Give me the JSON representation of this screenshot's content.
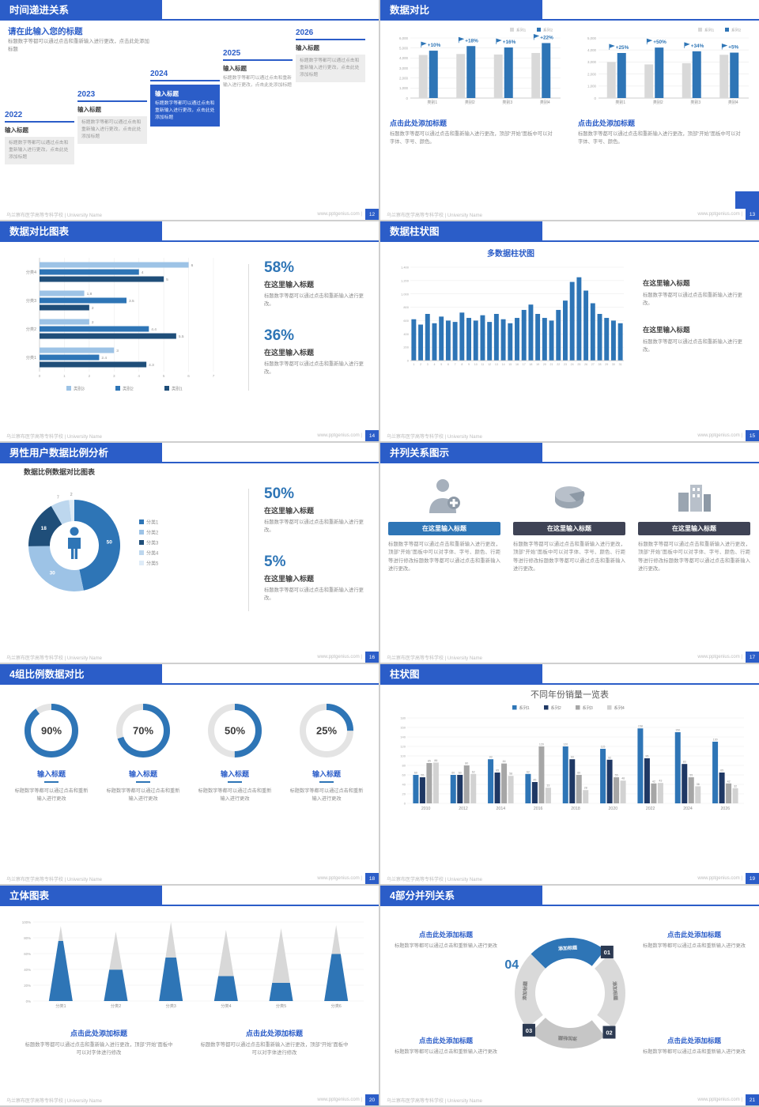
{
  "footer": {
    "left": "乌兰察布医学高等专科学校 | University Name",
    "site": "www.pptgenius.com"
  },
  "slides": {
    "s12": {
      "title": "时间递进关系",
      "page": "12",
      "heading": "请在此输入您的标题",
      "subtext": "标题数字等都可以通过点击和重新输入进行更改，点击此处添加标题",
      "items": [
        {
          "year": "2022",
          "label": "输入标题",
          "body": "标题数字等都可以通过点击和重新输入进行更改，点击此处添加标题"
        },
        {
          "year": "2023",
          "label": "输入标题",
          "body": "标题数字等都可以通过点击和重新输入进行更改，点击此处添加标题"
        },
        {
          "year": "2024",
          "label": "输入标题",
          "body": "标题数字等都可以通过点击和重新输入进行更改，点击此处添加标题"
        },
        {
          "year": "2025",
          "label": "输入标题",
          "body": "标题数字等都可以通过点击和重新输入进行更改，点击此处添加标题"
        },
        {
          "year": "2026",
          "label": "输入标题",
          "body": "标题数字等都可以通过点击和重新输入进行更改，点击此处添加标题"
        }
      ]
    },
    "s13": {
      "title": "数据对比",
      "page": "13",
      "charts": [
        {
          "type": "bar",
          "legend": [
            "系列1",
            "系列2"
          ],
          "categories": [
            "类别1",
            "类别2",
            "类别3",
            "类别4"
          ],
          "series1": [
            4300,
            4400,
            4350,
            4500
          ],
          "series2": [
            4730,
            5190,
            5050,
            5490
          ],
          "pct": [
            "+10%",
            "+18%",
            "+16%",
            "+22%"
          ],
          "ymax": 6000,
          "ysteps": 6,
          "caption": "点击此处添加标题",
          "body": "标题数字等都可以通过点击和重新输入进行更改，顶部“开始”面板中可以对字体、字号、颜色。"
        },
        {
          "type": "bar",
          "legend": [
            "系列1",
            "系列2"
          ],
          "categories": [
            "类别1",
            "类别2",
            "类别3",
            "类别4"
          ],
          "series1": [
            3000,
            2800,
            2900,
            3600
          ],
          "series2": [
            3750,
            4200,
            3890,
            3780
          ],
          "pct": [
            "+25%",
            "+50%",
            "+34%",
            "+5%"
          ],
          "ymax": 5000,
          "ysteps": 5,
          "caption": "点击此处添加标题",
          "body": "标题数字等都可以通过点击和重新输入进行更改，顶部“开始”面板中可以对字体、字号、颜色。"
        }
      ]
    },
    "s14": {
      "title": "数据对比图表",
      "page": "14",
      "chart": {
        "type": "bar",
        "categories": [
          "分类1",
          "分类2",
          "分类3",
          "分类4"
        ],
        "series": [
          {
            "name": "类别1",
            "color": "#1f4e79",
            "values": [
              4.3,
              5.5,
              2,
              5
            ]
          },
          {
            "name": "类别2",
            "color": "#2e75b6",
            "values": [
              2.4,
              4.4,
              3.5,
              4
            ]
          },
          {
            "name": "类别3",
            "color": "#9dc3e6",
            "values": [
              3,
              2,
              1.8,
              6
            ]
          }
        ],
        "xmax": 7
      },
      "stats": [
        {
          "pct": "58%",
          "label": "在这里输入标题",
          "body": "标题数字等都可以通过点击和重新输入进行更改。"
        },
        {
          "pct": "36%",
          "label": "在这里输入标题",
          "body": "标题数字等都可以通过点击和重新输入进行更改。"
        }
      ]
    },
    "s15": {
      "title": "数据柱状图",
      "page": "15",
      "chart_title": "多数据柱状图",
      "chart": {
        "type": "bar",
        "ymax": 1400,
        "ystep": 200,
        "values": [
          620,
          540,
          700,
          560,
          660,
          600,
          580,
          720,
          640,
          600,
          680,
          580,
          700,
          620,
          560,
          640,
          760,
          840,
          700,
          640,
          600,
          760,
          900,
          1180,
          1250,
          1050,
          860,
          700,
          640,
          600,
          560
        ]
      },
      "texts": [
        {
          "label": "在这里输入标题",
          "body": "标题数字等都可以通过点击和重新输入进行更改。"
        },
        {
          "label": "在这里输入标题",
          "body": "标题数字等都可以通过点击和重新输入进行更改。"
        }
      ]
    },
    "s16": {
      "title": "男性用户数据比例分析",
      "page": "16",
      "chart_title": "数据比例数据对比图表",
      "chart": {
        "type": "pie",
        "legend": [
          "分类1",
          "分类2",
          "分类3",
          "分类4",
          "分类5"
        ],
        "values": [
          50,
          30,
          18,
          7,
          2
        ],
        "colors": [
          "#2e75b6",
          "#9dc3e6",
          "#1f4e79",
          "#bdd7ee",
          "#deebf7"
        ]
      },
      "stats": [
        {
          "pct": "50%",
          "label": "在这里输入标题",
          "body": "标题数字等都可以通过点击和重新输入进行更改。"
        },
        {
          "pct": "5%",
          "label": "在这里输入标题",
          "body": "标题数字等都可以通过点击和重新输入进行更改。"
        }
      ]
    },
    "s17": {
      "title": "并列关系图示",
      "page": "17",
      "columns": [
        {
          "icon": "nurse-icon",
          "header": "在这里输入标题",
          "body": "标题数字等都可以通过点击和重新输入进行更改，顶部“开始”面板中可以对字体、字号、颜色、行距等进行修改标题数字等都可以通过点击和重新输入进行更改。"
        },
        {
          "icon": "pie-chart-icon",
          "header": "在这里输入标题",
          "body": "标题数字等都可以通过点击和重新输入进行更改，顶部“开始”面板中可以对字体、字号、颜色、行距等进行修改标题数字等都可以通过点击和重新输入进行更改。"
        },
        {
          "icon": "building-icon",
          "header": "在这里输入标题",
          "body": "标题数字等都可以通过点击和重新输入进行更改，顶部“开始”面板中可以对字体、字号、颜色、行距等进行修改标题数字等都可以通过点击和重新输入进行更改。"
        }
      ]
    },
    "s18": {
      "title": "4组比例数据对比",
      "page": "18",
      "rings": [
        {
          "value": 90,
          "pct": "90%",
          "label": "输入标题",
          "body": "标题数字等都可以通过点击和重新输入进行更改"
        },
        {
          "value": 70,
          "pct": "70%",
          "label": "输入标题",
          "body": "标题数字等都可以通过点击和重新输入进行更改"
        },
        {
          "value": 50,
          "pct": "50%",
          "label": "输入标题",
          "body": "标题数字等都可以通过点击和重新输入进行更改"
        },
        {
          "value": 25,
          "pct": "25%",
          "label": "输入标题",
          "body": "标题数字等都可以通过点击和重新输入进行更改"
        }
      ]
    },
    "s19": {
      "title": "柱状图",
      "page": "19",
      "chart_title": "不同年份销量一览表",
      "chart": {
        "type": "bar",
        "years": [
          "2010",
          "2012",
          "2014",
          "2016",
          "2018",
          "2020",
          "2022",
          "2024",
          "2026"
        ],
        "ymax": 180,
        "series": [
          {
            "name": "系列1",
            "color": "#2e75b6",
            "values": [
              60,
              60,
              93,
              62,
              120,
              115,
              158,
              150,
              130
            ]
          },
          {
            "name": "系列2",
            "color": "#1f3864",
            "values": [
              55,
              60,
              65,
              45,
              93,
              92,
              95,
              83,
              65
            ]
          },
          {
            "name": "系列3",
            "color": "#a6a6a6",
            "values": [
              85,
              80,
              84,
              120,
              60,
              55,
              42,
              55,
              42
            ]
          },
          {
            "name": "系列4",
            "color": "#d2d2d2",
            "values": [
              86,
              62,
              58,
              33,
              28,
              48,
              43,
              36,
              32
            ]
          }
        ]
      }
    },
    "s20": {
      "title": "立体图表",
      "page": "20",
      "chart": {
        "type": "bar",
        "categories": [
          "分类1",
          "分类2",
          "分类3",
          "分类4",
          "分类5",
          "分类6"
        ],
        "yticks": [
          "100%",
          "80%",
          "60%",
          "40%",
          "20%",
          "0%"
        ],
        "heights": [
          0.95,
          0.88,
          1.0,
          0.9,
          0.92,
          0.96
        ],
        "fills": [
          0.8,
          0.45,
          0.55,
          0.35,
          0.25,
          0.62
        ]
      },
      "captions": [
        {
          "head": "点击此处添加标题",
          "body": "标题数字等都可以通过点击和重新输入进行更改，顶部“开始”面板中可以对字体进行修改"
        },
        {
          "head": "点击此处添加标题",
          "body": "标题数字等都可以通过点击和重新输入进行更改，顶部“开始”面板中可以对字体进行修改"
        }
      ]
    },
    "s21": {
      "title": "4部分并列关系",
      "page": "21",
      "numbers": [
        "01",
        "02",
        "03",
        "04"
      ],
      "seg_label": "添加标题",
      "blocks": [
        {
          "head": "点击此处添加标题",
          "body": "标题数字等都可以通过点击和重新输入进行更改"
        },
        {
          "head": "点击此处添加标题",
          "body": "标题数字等都可以通过点击和重新输入进行更改"
        },
        {
          "head": "点击此处添加标题",
          "body": "标题数字等都可以通过点击和重新输入进行更改"
        },
        {
          "head": "点击此处添加标题",
          "body": "标题数字等都可以通过点击和重新输入进行更改"
        }
      ]
    }
  }
}
